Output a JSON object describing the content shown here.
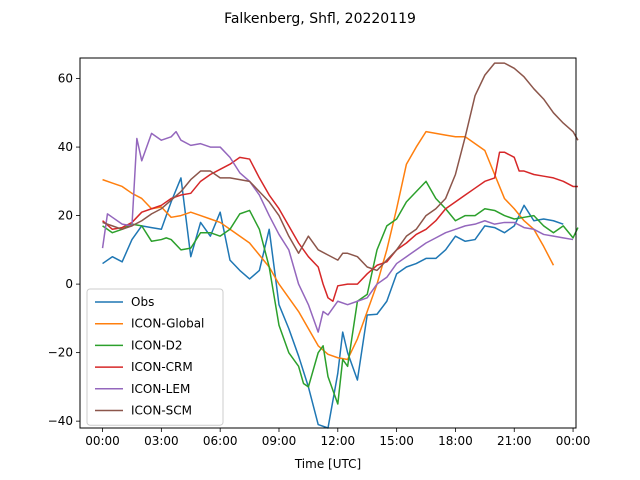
{
  "chart_data": {
    "type": "line",
    "title": "Falkenberg, Shfl, 20220119",
    "xlabel": "Time [UTC]",
    "ylabel": "",
    "x_unit": "hours UTC",
    "xlim": [
      -1.15,
      24.15
    ],
    "ylim": [
      -42,
      66
    ],
    "xticks": [
      0,
      3,
      6,
      9,
      12,
      15,
      18,
      21,
      24
    ],
    "xtick_labels": [
      "00:00",
      "03:00",
      "06:00",
      "09:00",
      "12:00",
      "15:00",
      "18:00",
      "21:00",
      "00:00"
    ],
    "yticks": [
      -40,
      -20,
      0,
      20,
      40,
      60
    ],
    "ytick_labels": [
      "−40",
      "−20",
      "0",
      "20",
      "40",
      "60"
    ],
    "grid": false,
    "legend_position": "lower-left",
    "series": [
      {
        "name": "Obs",
        "color": "#1f77b4",
        "points": [
          [
            0.0,
            6
          ],
          [
            0.5,
            8
          ],
          [
            1.0,
            6.5
          ],
          [
            1.5,
            13
          ],
          [
            2.0,
            17
          ],
          [
            2.5,
            16.5
          ],
          [
            3.0,
            16
          ],
          [
            3.5,
            24
          ],
          [
            4.0,
            31
          ],
          [
            4.5,
            8
          ],
          [
            5.0,
            18
          ],
          [
            5.5,
            14
          ],
          [
            6.0,
            21
          ],
          [
            6.5,
            7
          ],
          [
            7.0,
            4
          ],
          [
            7.5,
            1.5
          ],
          [
            8.0,
            4
          ],
          [
            8.5,
            16
          ],
          [
            9.0,
            -6
          ],
          [
            9.5,
            -13
          ],
          [
            10.0,
            -21
          ],
          [
            10.5,
            -30
          ],
          [
            11.0,
            -41
          ],
          [
            11.5,
            -42
          ],
          [
            12.0,
            -26
          ],
          [
            12.25,
            -14
          ],
          [
            12.5,
            -20
          ],
          [
            13.0,
            -28
          ],
          [
            13.5,
            -9
          ],
          [
            14.0,
            -8.8
          ],
          [
            14.5,
            -5
          ],
          [
            15.0,
            3
          ],
          [
            15.5,
            5
          ],
          [
            16.0,
            6
          ],
          [
            16.5,
            7.5
          ],
          [
            17.0,
            7.5
          ],
          [
            17.5,
            10
          ],
          [
            18.0,
            14
          ],
          [
            18.5,
            12.5
          ],
          [
            19.0,
            13
          ],
          [
            19.5,
            17
          ],
          [
            20.0,
            16.5
          ],
          [
            20.5,
            15
          ],
          [
            21.0,
            17
          ],
          [
            21.5,
            23
          ],
          [
            22.0,
            18.5
          ],
          [
            22.5,
            19
          ],
          [
            23.0,
            18.5
          ],
          [
            23.5,
            17.5
          ]
        ]
      },
      {
        "name": "ICON-Global",
        "color": "#ff7f0e",
        "points": [
          [
            0.0,
            30.5
          ],
          [
            0.5,
            29.5
          ],
          [
            1.0,
            28.5
          ],
          [
            1.5,
            26.5
          ],
          [
            2.0,
            25
          ],
          [
            2.5,
            22
          ],
          [
            3.0,
            22.5
          ],
          [
            3.5,
            19.5
          ],
          [
            4.0,
            20
          ],
          [
            4.5,
            21
          ],
          [
            5.0,
            20
          ],
          [
            5.5,
            19
          ],
          [
            6.0,
            18
          ],
          [
            6.5,
            16
          ],
          [
            7.0,
            14
          ],
          [
            7.5,
            12
          ],
          [
            8.0,
            8.5
          ],
          [
            8.5,
            5
          ],
          [
            9.0,
            0
          ],
          [
            9.5,
            -4
          ],
          [
            10.0,
            -8
          ],
          [
            10.5,
            -13
          ],
          [
            11.0,
            -18
          ],
          [
            11.5,
            -20.5
          ],
          [
            12.0,
            -21.5
          ],
          [
            12.5,
            -22
          ],
          [
            13.0,
            -16
          ],
          [
            13.5,
            -8
          ],
          [
            14.0,
            0
          ],
          [
            14.5,
            10
          ],
          [
            15.0,
            22
          ],
          [
            15.5,
            35
          ],
          [
            16.0,
            40
          ],
          [
            16.5,
            44.5
          ],
          [
            17.0,
            44
          ],
          [
            17.5,
            43.5
          ],
          [
            18.0,
            43
          ],
          [
            18.5,
            43
          ],
          [
            19.0,
            41
          ],
          [
            19.5,
            39
          ],
          [
            20.0,
            32
          ],
          [
            20.5,
            25
          ],
          [
            21.0,
            22
          ],
          [
            21.5,
            18.5
          ],
          [
            22.0,
            16
          ],
          [
            22.5,
            11
          ],
          [
            23.0,
            5.5
          ]
        ]
      },
      {
        "name": "ICON-D2",
        "color": "#2ca02c",
        "points": [
          [
            0.0,
            17
          ],
          [
            0.5,
            15
          ],
          [
            1.0,
            16
          ],
          [
            1.5,
            17.5
          ],
          [
            2.0,
            17
          ],
          [
            2.5,
            12.5
          ],
          [
            3.0,
            13
          ],
          [
            3.25,
            13.5
          ],
          [
            3.5,
            13
          ],
          [
            4.0,
            10
          ],
          [
            4.5,
            10.5
          ],
          [
            5.0,
            15
          ],
          [
            5.5,
            15
          ],
          [
            6.0,
            14
          ],
          [
            6.5,
            16
          ],
          [
            7.0,
            20.5
          ],
          [
            7.5,
            21.5
          ],
          [
            8.0,
            16
          ],
          [
            8.5,
            5
          ],
          [
            9.0,
            -12
          ],
          [
            9.5,
            -20
          ],
          [
            10.0,
            -24
          ],
          [
            10.25,
            -29
          ],
          [
            10.5,
            -30
          ],
          [
            11.0,
            -20
          ],
          [
            11.25,
            -18
          ],
          [
            11.5,
            -27
          ],
          [
            12.0,
            -35
          ],
          [
            12.25,
            -22
          ],
          [
            12.5,
            -24
          ],
          [
            13.0,
            -5
          ],
          [
            13.5,
            -3
          ],
          [
            14.0,
            10
          ],
          [
            14.5,
            17
          ],
          [
            15.0,
            19
          ],
          [
            15.5,
            24
          ],
          [
            16.0,
            27
          ],
          [
            16.5,
            30
          ],
          [
            17.0,
            25
          ],
          [
            17.5,
            22
          ],
          [
            18.0,
            18.5
          ],
          [
            18.5,
            20
          ],
          [
            19.0,
            20
          ],
          [
            19.5,
            22
          ],
          [
            20.0,
            21.5
          ],
          [
            20.5,
            20
          ],
          [
            21.0,
            19
          ],
          [
            21.5,
            19.5
          ],
          [
            22.0,
            20
          ],
          [
            22.5,
            17
          ],
          [
            23.0,
            15
          ],
          [
            23.5,
            17
          ],
          [
            24.0,
            13.5
          ],
          [
            24.25,
            16.5
          ]
        ]
      },
      {
        "name": "ICON-CRM",
        "color": "#d62728",
        "points": [
          [
            0.0,
            18.5
          ],
          [
            0.5,
            16
          ],
          [
            1.0,
            16.5
          ],
          [
            1.5,
            18
          ],
          [
            2.0,
            21
          ],
          [
            2.5,
            22
          ],
          [
            3.0,
            23
          ],
          [
            3.5,
            25
          ],
          [
            4.0,
            26
          ],
          [
            4.5,
            26.5
          ],
          [
            5.0,
            30
          ],
          [
            5.5,
            32
          ],
          [
            6.0,
            33.5
          ],
          [
            6.5,
            35
          ],
          [
            7.0,
            37
          ],
          [
            7.5,
            36.5
          ],
          [
            8.0,
            31
          ],
          [
            8.5,
            26
          ],
          [
            9.0,
            22
          ],
          [
            9.5,
            17
          ],
          [
            10.0,
            12
          ],
          [
            10.5,
            8
          ],
          [
            11.0,
            5
          ],
          [
            11.25,
            0
          ],
          [
            11.5,
            -4
          ],
          [
            11.75,
            -5
          ],
          [
            12.0,
            -0.5
          ],
          [
            12.5,
            0
          ],
          [
            13.0,
            0
          ],
          [
            13.5,
            3
          ],
          [
            14.0,
            5.5
          ],
          [
            14.5,
            6.5
          ],
          [
            15.0,
            10
          ],
          [
            15.5,
            12
          ],
          [
            16.0,
            14.5
          ],
          [
            16.5,
            16
          ],
          [
            17.0,
            18.5
          ],
          [
            17.5,
            22
          ],
          [
            18.0,
            24
          ],
          [
            18.5,
            26
          ],
          [
            19.0,
            28
          ],
          [
            19.5,
            30
          ],
          [
            20.0,
            31
          ],
          [
            20.25,
            38.5
          ],
          [
            20.5,
            38.5
          ],
          [
            21.0,
            37
          ],
          [
            21.25,
            33
          ],
          [
            21.5,
            33
          ],
          [
            22.0,
            32
          ],
          [
            22.5,
            31.5
          ],
          [
            23.0,
            31
          ],
          [
            23.5,
            30
          ],
          [
            24.0,
            28.5
          ],
          [
            24.25,
            28.5
          ]
        ]
      },
      {
        "name": "ICON-LEM",
        "color": "#9467bd",
        "points": [
          [
            0.0,
            10.5
          ],
          [
            0.25,
            20.5
          ],
          [
            0.5,
            19.5
          ],
          [
            1.0,
            17.5
          ],
          [
            1.5,
            17
          ],
          [
            1.75,
            42.5
          ],
          [
            2.0,
            36
          ],
          [
            2.5,
            44
          ],
          [
            3.0,
            42
          ],
          [
            3.5,
            43
          ],
          [
            3.75,
            44.5
          ],
          [
            4.0,
            42
          ],
          [
            4.5,
            40.5
          ],
          [
            5.0,
            41
          ],
          [
            5.5,
            40
          ],
          [
            6.0,
            40
          ],
          [
            6.5,
            37
          ],
          [
            7.0,
            32.5
          ],
          [
            7.5,
            30
          ],
          [
            8.0,
            26
          ],
          [
            8.5,
            20
          ],
          [
            9.0,
            14.5
          ],
          [
            9.5,
            10
          ],
          [
            10.0,
            0
          ],
          [
            10.5,
            -6
          ],
          [
            11.0,
            -14
          ],
          [
            11.25,
            -8
          ],
          [
            11.5,
            -9
          ],
          [
            12.0,
            -5
          ],
          [
            12.5,
            -6
          ],
          [
            13.0,
            -5
          ],
          [
            13.5,
            -4
          ],
          [
            14.0,
            0
          ],
          [
            14.5,
            2
          ],
          [
            15.0,
            6
          ],
          [
            15.5,
            8
          ],
          [
            16.0,
            10
          ],
          [
            16.5,
            12
          ],
          [
            17.0,
            13.5
          ],
          [
            17.5,
            15
          ],
          [
            18.0,
            16
          ],
          [
            18.5,
            17
          ],
          [
            19.0,
            17.5
          ],
          [
            19.5,
            18.5
          ],
          [
            20.0,
            17.5
          ],
          [
            20.5,
            18
          ],
          [
            21.0,
            18
          ],
          [
            21.5,
            16.5
          ],
          [
            22.0,
            16
          ],
          [
            22.5,
            14.5
          ],
          [
            23.0,
            14
          ],
          [
            23.5,
            13.5
          ],
          [
            24.0,
            13
          ]
        ]
      },
      {
        "name": "ICON-SCM",
        "color": "#8c564b",
        "points": [
          [
            0.0,
            18
          ],
          [
            0.5,
            17
          ],
          [
            1.0,
            16
          ],
          [
            1.5,
            17
          ],
          [
            2.0,
            18.5
          ],
          [
            2.5,
            20.5
          ],
          [
            3.0,
            22
          ],
          [
            3.5,
            24.5
          ],
          [
            4.0,
            27
          ],
          [
            4.5,
            30.5
          ],
          [
            5.0,
            33
          ],
          [
            5.5,
            33
          ],
          [
            6.0,
            31
          ],
          [
            6.5,
            31
          ],
          [
            7.0,
            30.5
          ],
          [
            7.5,
            30
          ],
          [
            8.0,
            27
          ],
          [
            8.5,
            24
          ],
          [
            9.0,
            20
          ],
          [
            9.5,
            14
          ],
          [
            10.0,
            9
          ],
          [
            10.5,
            14
          ],
          [
            11.0,
            10
          ],
          [
            11.5,
            8.5
          ],
          [
            12.0,
            7
          ],
          [
            12.25,
            9
          ],
          [
            12.5,
            9
          ],
          [
            13.0,
            8
          ],
          [
            13.5,
            5
          ],
          [
            14.0,
            4
          ],
          [
            14.5,
            7
          ],
          [
            15.0,
            10
          ],
          [
            15.5,
            14
          ],
          [
            16.0,
            16
          ],
          [
            16.5,
            20
          ],
          [
            17.0,
            22
          ],
          [
            17.5,
            25
          ],
          [
            18.0,
            32
          ],
          [
            18.5,
            43
          ],
          [
            19.0,
            55
          ],
          [
            19.5,
            61
          ],
          [
            20.0,
            64.5
          ],
          [
            20.5,
            64.5
          ],
          [
            21.0,
            63
          ],
          [
            21.5,
            60.5
          ],
          [
            22.0,
            57
          ],
          [
            22.5,
            54
          ],
          [
            23.0,
            50
          ],
          [
            23.5,
            47
          ],
          [
            24.0,
            44.5
          ],
          [
            24.25,
            42
          ]
        ]
      }
    ]
  }
}
